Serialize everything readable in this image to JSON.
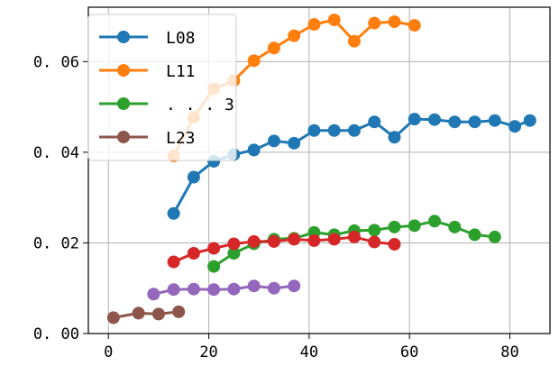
{
  "chart_data": {
    "type": "line",
    "title": "",
    "xlabel": "",
    "ylabel": "",
    "xlim": [
      -4,
      88
    ],
    "ylim": [
      0,
      0.072
    ],
    "grid": true,
    "legend_placement": "top-left",
    "x_ticks": [
      0,
      20,
      40,
      60,
      80
    ],
    "x_tick_labels": [
      "0",
      "20",
      "40",
      "60",
      "80"
    ],
    "y_ticks": [
      0,
      0.02,
      0.04,
      0.06
    ],
    "y_tick_labels": [
      "0. 00",
      "0. 02",
      "0. 04",
      "0. 06"
    ],
    "series": [
      {
        "name": "L08",
        "color": "#1f77b4",
        "in_legend": true,
        "x": [
          13,
          17,
          21,
          25,
          29,
          33,
          37,
          41,
          45,
          49,
          53,
          57,
          61,
          65,
          69,
          73,
          77,
          81,
          84
        ],
        "y": [
          0.0265,
          0.0345,
          0.038,
          0.0395,
          0.0405,
          0.0425,
          0.042,
          0.0448,
          0.0448,
          0.0448,
          0.0467,
          0.0433,
          0.0473,
          0.0472,
          0.0467,
          0.0467,
          0.047,
          0.0457,
          0.047
        ]
      },
      {
        "name": "L11",
        "color": "#ff7f0e",
        "in_legend": true,
        "x": [
          13,
          17,
          21,
          25,
          29,
          33,
          37,
          41,
          45,
          49,
          53,
          57,
          61
        ],
        "y": [
          0.0392,
          0.0477,
          0.054,
          0.0558,
          0.0602,
          0.063,
          0.0657,
          0.0682,
          0.0692,
          0.0645,
          0.0685,
          0.0688,
          0.068
        ]
      },
      {
        "name": ". . .  3",
        "color": "#2ca02c",
        "in_legend": true,
        "x": [
          21,
          25,
          29,
          33,
          37,
          41,
          45,
          49,
          53,
          57,
          61,
          65,
          69,
          73,
          77
        ],
        "y": [
          0.0148,
          0.0177,
          0.0198,
          0.0208,
          0.021,
          0.0223,
          0.0218,
          0.0227,
          0.0228,
          0.0235,
          0.0238,
          0.0248,
          0.0235,
          0.0218,
          0.0213
        ]
      },
      {
        "name": "",
        "color": "#d62728",
        "in_legend": false,
        "x": [
          13,
          17,
          21,
          25,
          29,
          33,
          37,
          41,
          45,
          49,
          53,
          57
        ],
        "y": [
          0.0158,
          0.0177,
          0.0188,
          0.0198,
          0.0203,
          0.0203,
          0.0208,
          0.0205,
          0.0208,
          0.0213,
          0.0202,
          0.0197
        ]
      },
      {
        "name": "",
        "color": "#9467bd",
        "in_legend": false,
        "x": [
          9,
          13,
          17,
          21,
          25,
          29,
          33,
          37
        ],
        "y": [
          0.0087,
          0.0097,
          0.0098,
          0.0097,
          0.0098,
          0.0105,
          0.01,
          0.0105
        ]
      },
      {
        "name": "L23",
        "color": "#8c564b",
        "in_legend": true,
        "x": [
          1,
          6,
          10,
          14
        ],
        "y": [
          0.0035,
          0.0045,
          0.0043,
          0.0048
        ]
      }
    ]
  }
}
